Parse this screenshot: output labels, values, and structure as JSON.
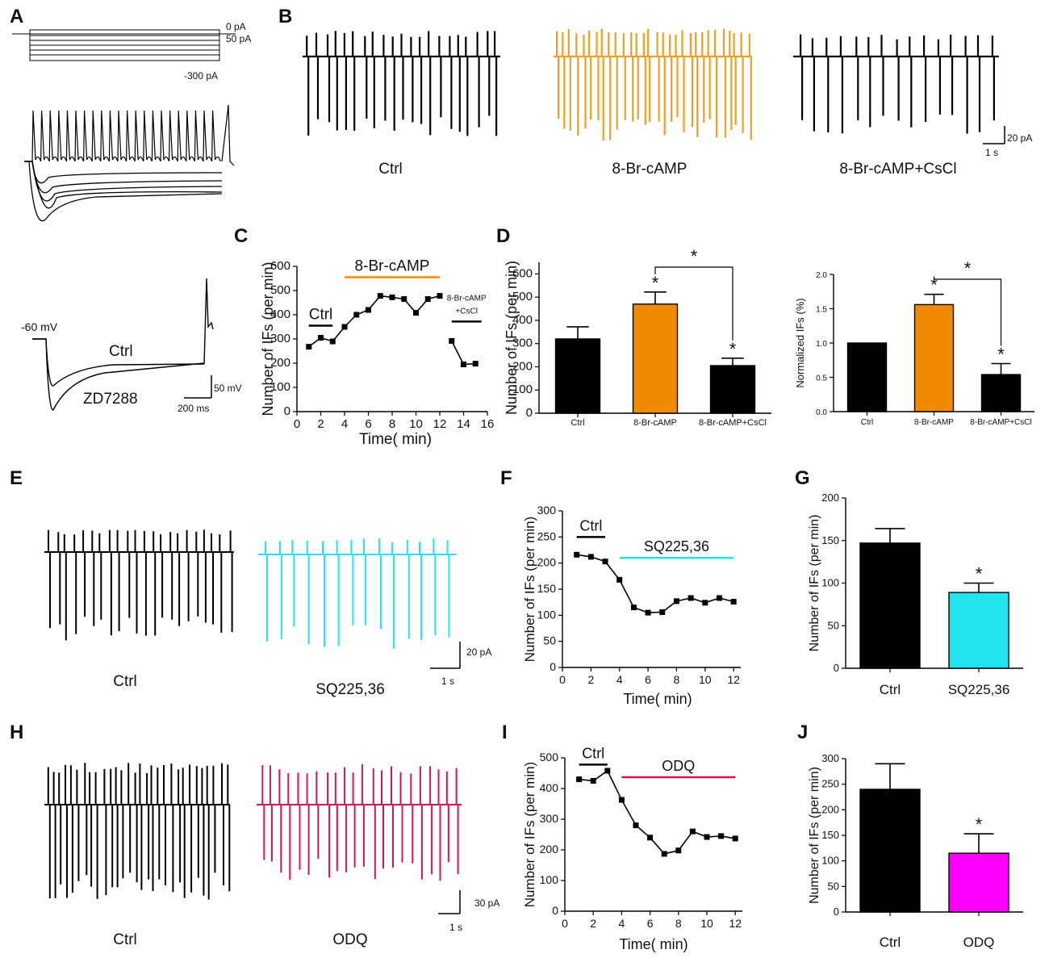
{
  "panel_letters": {
    "A": "A",
    "B": "B",
    "C": "C",
    "D": "D",
    "E": "E",
    "F": "F",
    "G": "G",
    "H": "H",
    "I": "I",
    "J": "J"
  },
  "colors": {
    "black": "#000000",
    "orange": "#f08a00",
    "orange_trace": "#f0a020",
    "cyan": "#22e3ee",
    "crimson": "#d4145a",
    "magenta": "#ff00ff",
    "star_line": "#000000"
  },
  "panelA": {
    "step_labels": [
      "0 pA",
      "50 pA",
      "-300 pA"
    ],
    "vm_label": "-60 mV",
    "ctrl_label": "Ctrl",
    "zd_label": "ZD7288",
    "scale_v": "50 mV",
    "scale_t": "200 ms"
  },
  "panelB": {
    "labels": [
      "Ctrl",
      "8-Br-cAMP",
      "8-Br-cAMP+CsCl"
    ],
    "scale_pa": "20 pA",
    "scale_s": "1 s"
  },
  "panelE": {
    "labels": [
      "Ctrl",
      "SQ225,36"
    ],
    "scale_pa": "20 pA",
    "scale_s": "1 s"
  },
  "panelH": {
    "labels": [
      "Ctrl",
      "ODQ"
    ],
    "scale_pa": "30 pA",
    "scale_s": "1 s"
  },
  "significance": "*",
  "chart_data": [
    {
      "id": "C",
      "type": "line",
      "xlabel": "Time( min)",
      "ylabel": "Number of IFs (per min)",
      "xlim": [
        0,
        16
      ],
      "ylim": [
        0,
        600
      ],
      "xticks": [
        0,
        2,
        4,
        6,
        8,
        10,
        12,
        14,
        16
      ],
      "yticks": [
        0,
        100,
        200,
        300,
        400,
        500,
        600
      ],
      "series": [
        {
          "name": "IFs",
          "x": [
            1,
            2,
            3,
            4,
            5,
            6,
            7,
            8,
            9,
            10,
            11,
            12
          ],
          "y": [
            268,
            305,
            290,
            350,
            400,
            420,
            478,
            472,
            465,
            408,
            465,
            478
          ]
        },
        {
          "name": "IFs CsCl",
          "x": [
            13,
            14,
            15
          ],
          "y": [
            292,
            195,
            198
          ]
        }
      ],
      "annotations": [
        {
          "text": "Ctrl",
          "from": 1,
          "to": 3,
          "y": 355,
          "color": "#000000"
        },
        {
          "text": "8-Br-cAMP",
          "from": 4,
          "to": 12,
          "y": 555,
          "color": "#f08a00"
        },
        {
          "text": "8-Br-cAMP",
          "text2": "+CsCl",
          "from": 13,
          "to": 15.5,
          "y": 372,
          "color": "#000000"
        }
      ]
    },
    {
      "id": "D1",
      "type": "bar",
      "ylabel": "Number of IFs (per min)",
      "ylim": [
        0,
        650
      ],
      "yticks": [
        0,
        100,
        200,
        300,
        400,
        500,
        600
      ],
      "categories": [
        "Ctrl",
        "8-Br-cAMP",
        "8-Br-cAMP+CsCl"
      ],
      "values": [
        320,
        470,
        205
      ],
      "errors": [
        52,
        52,
        32
      ],
      "colors": [
        "#000000",
        "#f08a00",
        "#000000"
      ],
      "stars": [
        1,
        2
      ],
      "bracket": [
        1,
        2
      ]
    },
    {
      "id": "D2",
      "type": "bar",
      "ylabel": "Normalized IFs (%)",
      "ylim": [
        0,
        2.0
      ],
      "yticks": [
        0.0,
        0.5,
        1.0,
        1.5,
        2.0
      ],
      "ytick_labels": [
        "0.0",
        "0.5",
        "1.0",
        "1.5",
        "2.0"
      ],
      "categories": [
        "Ctrl",
        "8-Br-cAMP",
        "8-Br-cAMP+CsCl"
      ],
      "values": [
        1.0,
        1.56,
        0.54
      ],
      "errors": [
        0,
        0.15,
        0.16
      ],
      "colors": [
        "#000000",
        "#f08a00",
        "#000000"
      ],
      "stars": [
        1,
        2
      ],
      "bracket": [
        1,
        2
      ]
    },
    {
      "id": "F",
      "type": "line",
      "xlabel": "Time(  min)",
      "ylabel": "Number of IFs (per min)",
      "xlim": [
        0,
        12.5
      ],
      "ylim": [
        0,
        300
      ],
      "xticks": [
        0,
        2,
        4,
        6,
        8,
        10,
        12
      ],
      "yticks": [
        0,
        50,
        100,
        150,
        200,
        250,
        300
      ],
      "series": [
        {
          "name": "IFs",
          "x": [
            1,
            2,
            3,
            4,
            5,
            6,
            7,
            8,
            9,
            10,
            11,
            12
          ],
          "y": [
            216,
            212,
            203,
            168,
            115,
            105,
            106,
            127,
            133,
            124,
            133,
            126
          ]
        }
      ],
      "annotations": [
        {
          "text": "Ctrl",
          "from": 1,
          "to": 3,
          "y": 250,
          "color": "#000000"
        },
        {
          "text": "SQ225,36",
          "from": 4,
          "to": 12,
          "y": 210,
          "color": "#22e3ee"
        }
      ]
    },
    {
      "id": "G",
      "type": "bar",
      "ylabel": "Number of IFs (per min)",
      "ylim": [
        0,
        200
      ],
      "yticks": [
        0,
        50,
        100,
        150,
        200
      ],
      "categories": [
        "Ctrl",
        "SQ225,36"
      ],
      "values": [
        147,
        89
      ],
      "errors": [
        17,
        11
      ],
      "colors": [
        "#000000",
        "#22e3ee"
      ],
      "stars": [
        1
      ]
    },
    {
      "id": "I",
      "type": "line",
      "xlabel": "Time( min)",
      "ylabel": "Number of IFs (per min)",
      "xlim": [
        0,
        12.5
      ],
      "ylim": [
        0,
        500
      ],
      "xticks": [
        0,
        2,
        4,
        6,
        8,
        10,
        12
      ],
      "yticks": [
        0,
        100,
        200,
        300,
        400,
        500
      ],
      "series": [
        {
          "name": "IFs",
          "x": [
            1,
            2,
            3,
            4,
            5,
            6,
            7,
            8,
            9,
            10,
            11,
            12
          ],
          "y": [
            430,
            425,
            458,
            363,
            280,
            240,
            187,
            198,
            260,
            242,
            245,
            237
          ]
        }
      ],
      "annotations": [
        {
          "text": "Ctrl",
          "from": 1,
          "to": 3,
          "y": 478,
          "color": "#000000"
        },
        {
          "text": "ODQ",
          "from": 4,
          "to": 12,
          "y": 437,
          "color": "#d4145a"
        }
      ]
    },
    {
      "id": "J",
      "type": "bar",
      "ylabel": "Number of IFs (per min)",
      "ylim": [
        0,
        300
      ],
      "yticks": [
        0,
        50,
        100,
        150,
        200,
        250,
        300
      ],
      "categories": [
        "Ctrl",
        "ODQ"
      ],
      "values": [
        240,
        115
      ],
      "errors": [
        50,
        38
      ],
      "colors": [
        "#000000",
        "#ff00ff"
      ],
      "stars": [
        1
      ]
    }
  ]
}
